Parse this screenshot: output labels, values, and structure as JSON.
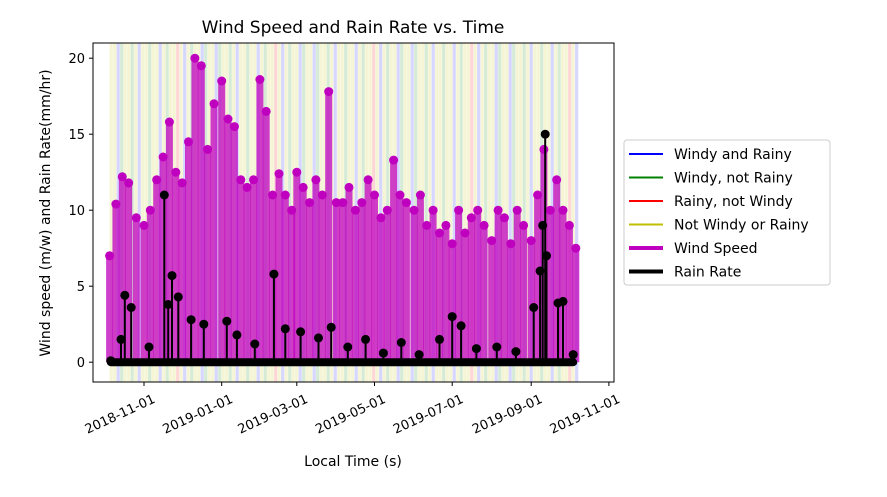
{
  "chart_data": {
    "type": "scatter",
    "title": "Wind Speed and Rain Rate vs. Time",
    "xlabel": "Local Time (s)",
    "ylabel": "Wind speed (m/w) and Rain Rate(mm/hr)",
    "xlim": [
      "2018-09-22",
      "2019-11-05"
    ],
    "ylim": [
      -1.3,
      21
    ],
    "x_ticks": [
      "2018-11-01",
      "2019-01-01",
      "2019-03-01",
      "2019-05-01",
      "2019-07-01",
      "2019-09-01",
      "2019-11-01"
    ],
    "y_ticks": [
      0,
      5,
      10,
      15,
      20
    ],
    "grid": false,
    "legend_position": "right outside",
    "legend": [
      {
        "label": "Windy and Rainy",
        "color": "#0000ff"
      },
      {
        "label": "Windy, not Rainy",
        "color": "#008000"
      },
      {
        "label": "Rainy, not Windy",
        "color": "#ff0000"
      },
      {
        "label": "Not Windy or Rainy",
        "color": "#bfbf00"
      },
      {
        "label": "Wind Speed",
        "color": "#bf00bf"
      },
      {
        "label": "Rain Rate",
        "color": "#000000"
      }
    ],
    "background_bands_span": [
      "2018-10-05",
      "2019-10-08"
    ],
    "series": [
      {
        "name": "Wind Speed",
        "color": "#bf00bf",
        "x": [
          "2018-10-05",
          "2018-10-10",
          "2018-10-15",
          "2018-10-20",
          "2018-10-26",
          "2018-11-01",
          "2018-11-06",
          "2018-11-11",
          "2018-11-16",
          "2018-11-21",
          "2018-11-26",
          "2018-12-01",
          "2018-12-06",
          "2018-12-11",
          "2018-12-16",
          "2018-12-21",
          "2018-12-26",
          "2019-01-01",
          "2019-01-06",
          "2019-01-11",
          "2019-01-16",
          "2019-01-21",
          "2019-01-26",
          "2019-01-31",
          "2019-02-05",
          "2019-02-10",
          "2019-02-15",
          "2019-02-20",
          "2019-02-25",
          "2019-03-01",
          "2019-03-06",
          "2019-03-11",
          "2019-03-16",
          "2019-03-21",
          "2019-03-26",
          "2019-04-01",
          "2019-04-06",
          "2019-04-11",
          "2019-04-16",
          "2019-04-21",
          "2019-04-26",
          "2019-05-01",
          "2019-05-06",
          "2019-05-11",
          "2019-05-16",
          "2019-05-21",
          "2019-05-26",
          "2019-06-01",
          "2019-06-06",
          "2019-06-11",
          "2019-06-16",
          "2019-06-21",
          "2019-06-26",
          "2019-07-01",
          "2019-07-06",
          "2019-07-11",
          "2019-07-16",
          "2019-07-21",
          "2019-07-26",
          "2019-08-01",
          "2019-08-06",
          "2019-08-11",
          "2019-08-16",
          "2019-08-21",
          "2019-08-26",
          "2019-09-01",
          "2019-09-06",
          "2019-09-11",
          "2019-09-16",
          "2019-09-21",
          "2019-09-26",
          "2019-10-01",
          "2019-10-06"
        ],
        "values": [
          7.0,
          10.4,
          12.2,
          11.8,
          9.5,
          9.0,
          10.0,
          12.0,
          13.5,
          15.8,
          12.5,
          11.8,
          14.5,
          20.0,
          19.5,
          14.0,
          17.0,
          18.5,
          16.0,
          15.5,
          12.0,
          11.5,
          12.0,
          18.6,
          16.5,
          11.0,
          12.4,
          11.0,
          10.0,
          12.5,
          11.5,
          10.5,
          12.0,
          11.0,
          17.8,
          10.5,
          10.5,
          11.5,
          10.0,
          10.5,
          12.0,
          11.0,
          9.5,
          10.0,
          13.3,
          11.0,
          10.5,
          10.0,
          11.0,
          9.0,
          10.0,
          8.5,
          9.0,
          7.8,
          10.0,
          8.5,
          9.5,
          10.0,
          9.0,
          8.0,
          10.0,
          9.5,
          7.8,
          10.0,
          9.0,
          8.0,
          11.0,
          14.0,
          10.0,
          12.0,
          10.0,
          9.0,
          7.5
        ]
      },
      {
        "name": "Rain Rate",
        "color": "#000000",
        "x": [
          "2018-10-06",
          "2018-10-14",
          "2018-10-17",
          "2018-10-22",
          "2018-11-05",
          "2018-11-17",
          "2018-11-20",
          "2018-11-23",
          "2018-11-28",
          "2018-12-08",
          "2018-12-18",
          "2019-01-05",
          "2019-01-13",
          "2019-01-27",
          "2019-02-11",
          "2019-02-20",
          "2019-03-04",
          "2019-03-18",
          "2019-03-28",
          "2019-04-10",
          "2019-04-24",
          "2019-05-08",
          "2019-05-22",
          "2019-06-05",
          "2019-06-21",
          "2019-07-01",
          "2019-07-08",
          "2019-07-20",
          "2019-08-05",
          "2019-08-20",
          "2019-09-03",
          "2019-09-08",
          "2019-09-10",
          "2019-09-12",
          "2019-09-13",
          "2019-09-22",
          "2019-09-26",
          "2019-10-04"
        ],
        "values": [
          0.1,
          1.5,
          4.4,
          3.6,
          1.0,
          11.0,
          3.8,
          5.7,
          4.3,
          2.8,
          2.5,
          2.7,
          1.8,
          1.2,
          5.8,
          2.2,
          2.0,
          1.6,
          2.3,
          1.0,
          1.5,
          0.6,
          1.3,
          0.5,
          1.5,
          3.0,
          2.4,
          0.9,
          1.0,
          0.7,
          3.6,
          6.0,
          9.0,
          15.0,
          7.0,
          3.9,
          4.0,
          0.5
        ]
      }
    ]
  }
}
